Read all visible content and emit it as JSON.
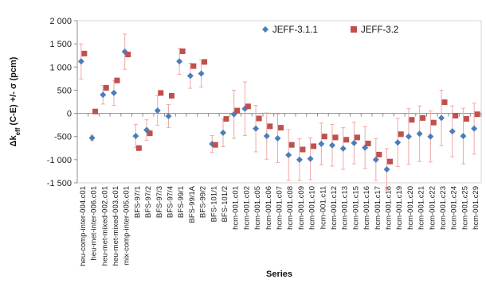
{
  "chart_data": {
    "type": "scatter",
    "ylabel": {
      "delta": "Δk",
      "sub": "eff",
      "rest": " (C-E) +/- σ (pcm)"
    },
    "xlabel": "Series",
    "ylim": [
      -1500,
      2000
    ],
    "yticks": [
      -1500,
      -1000,
      -500,
      0,
      500,
      1000,
      1500,
      2000
    ],
    "ytick_labels": [
      "-1 500",
      "-1 000",
      "-500",
      "0",
      "500",
      "1 000",
      "1 500",
      "2 000"
    ],
    "grid": false,
    "legend_position": "top-right",
    "categories": [
      "heu-comp-inter-004.c01",
      "heu-met-inter-006.c01",
      "heu-met-mixed-002.c01",
      "heu-met-mixed-003.c01",
      "mix-comp-inter-005.c01",
      "BFS-97/1",
      "BFS-97/2",
      "BFS-97/3",
      "BFS-97/4",
      "BFS-99/1",
      "BFS-99/1A",
      "BFS-99/2",
      "BFS-101/1",
      "BFS-101/2",
      "hcm-001.c01",
      "hcm-001.c02",
      "hcm-001.c05",
      "hcm-001.c06",
      "hcm-001.c07",
      "hcm-001.c08",
      "hcm-001.c09",
      "hcm-001.c10",
      "hcm-001.c11",
      "hcm-001.c12",
      "hcm-001.c13",
      "hcm-001.c15",
      "hcm-001.c16",
      "hcm-001.c17",
      "hcm-001.c18",
      "hcm-001.c19",
      "hcm-001.c20",
      "hcm-001.c21",
      "hcm-001.c22",
      "hcm-001.c23",
      "hcm-001.c24",
      "hcm-001.c25",
      "hcm-001.c29"
    ],
    "series": [
      {
        "name": "JEFF-3.1.1",
        "color": "#4a7ebb",
        "marker": "diamond",
        "values": [
          1120,
          -530,
          400,
          440,
          1330,
          -490,
          -360,
          60,
          -60,
          1120,
          810,
          860,
          -660,
          -420,
          -20,
          100,
          -330,
          -490,
          -540,
          -900,
          -1000,
          -980,
          -660,
          -690,
          -760,
          -640,
          -740,
          -1000,
          -1210,
          -630,
          -500,
          -440,
          -500,
          -100,
          -390,
          -490,
          -330
        ],
        "errors": [
          380,
          60,
          200,
          270,
          380,
          250,
          220,
          320,
          250,
          280,
          270,
          290,
          180,
          300,
          520,
          580,
          500,
          500,
          520,
          550,
          450,
          450,
          450,
          450,
          450,
          450,
          450,
          450,
          450,
          520,
          600,
          600,
          550,
          600,
          550,
          600,
          550
        ]
      },
      {
        "name": "JEFF-3.2",
        "color": "#c0504d",
        "marker": "square",
        "values": [
          1290,
          40,
          550,
          710,
          1270,
          -750,
          -430,
          440,
          380,
          1340,
          1020,
          1110,
          -680,
          -120,
          60,
          150,
          -110,
          -280,
          -310,
          -680,
          -780,
          -710,
          -500,
          -520,
          -570,
          -520,
          -650,
          -890,
          -1040,
          -450,
          -140,
          -100,
          -200,
          240,
          -50,
          -120,
          -20
        ]
      }
    ]
  }
}
